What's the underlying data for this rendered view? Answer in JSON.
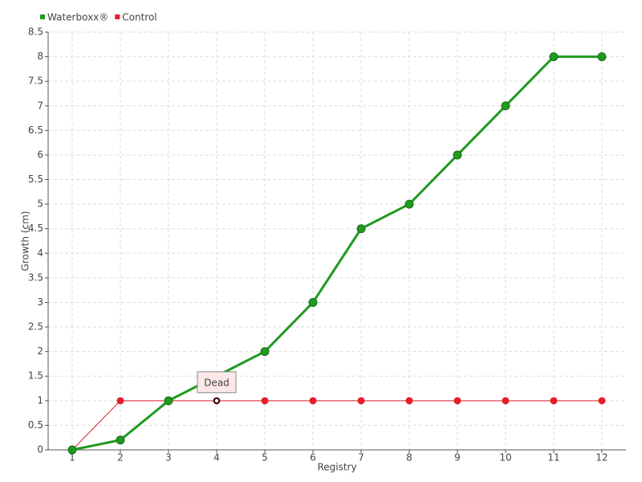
{
  "chart_data": {
    "type": "line",
    "x_label": "Registry",
    "y_label": "Growth (cm)",
    "categories": [
      "1",
      "2",
      "3",
      "4",
      "5",
      "6",
      "7",
      "8",
      "9",
      "10",
      "11",
      "12"
    ],
    "series": [
      {
        "name": "Waterboxx®",
        "color": "#1f9a1f",
        "values": [
          0,
          0.2,
          1,
          1.5,
          2,
          3,
          4.5,
          5,
          6,
          7,
          8,
          8
        ]
      },
      {
        "name": "Control",
        "color": "#e41f2b",
        "values": [
          0,
          1,
          1,
          1,
          1,
          1,
          1,
          1,
          1,
          1,
          1,
          1
        ]
      }
    ],
    "ylim": [
      0,
      8.5
    ],
    "yticks": [
      0,
      0.5,
      1,
      1.5,
      2,
      2.5,
      3,
      3.5,
      4,
      4.5,
      5,
      5.5,
      6,
      6.5,
      7,
      7.5,
      8,
      8.5
    ],
    "grid": true,
    "legend": "top-left",
    "annotation": {
      "text": "Dead",
      "x": "4",
      "y": 1
    }
  }
}
